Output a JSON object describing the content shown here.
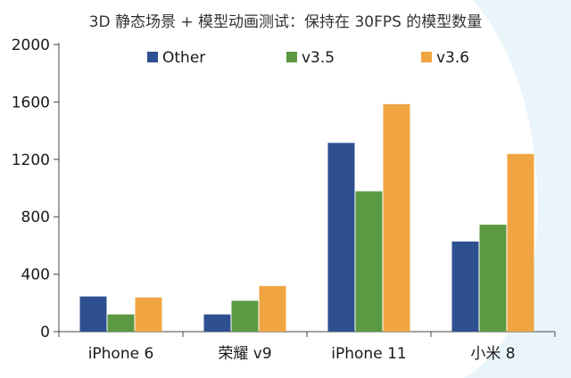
{
  "chart_data": {
    "type": "bar",
    "title": "3D 静态场景 + 模型动画测试：保持在 30FPS 的模型数量",
    "xlabel": "",
    "ylabel": "",
    "categories": [
      "iPhone 6",
      "荣耀 v9",
      "iPhone 11",
      "小米 8"
    ],
    "series": [
      {
        "name": "Other",
        "color": "#2e5090",
        "values": [
          245,
          120,
          1315,
          628
        ]
      },
      {
        "name": "v3.5",
        "color": "#5b9a43",
        "values": [
          120,
          215,
          978,
          745
        ]
      },
      {
        "name": "v3.6",
        "color": "#f0a542",
        "values": [
          238,
          318,
          1585,
          1238
        ]
      }
    ],
    "ylim": [
      0,
      2000
    ],
    "yticks": [
      0,
      400,
      800,
      1200,
      1600,
      2000
    ],
    "grid": false,
    "legend_position": "top",
    "background_accent": "#e9f5fb"
  }
}
